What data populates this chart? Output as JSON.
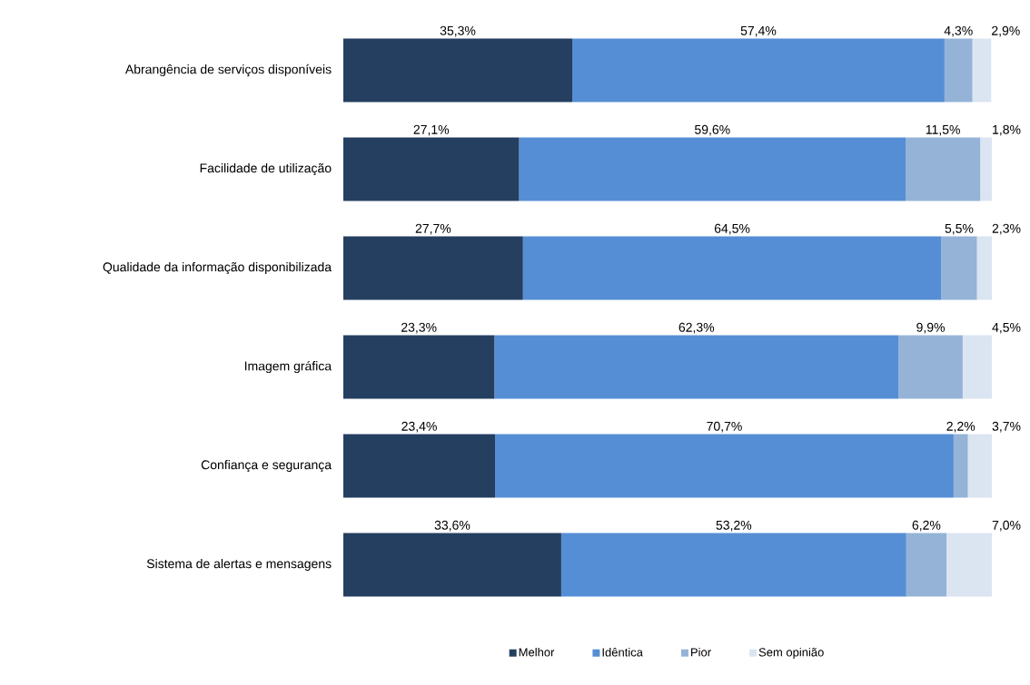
{
  "chart_data": {
    "type": "bar",
    "orientation": "horizontal",
    "stacked": true,
    "tick_labels": "y",
    "legend": "bottom",
    "categories": [
      "Abrangência de serviços disponíveis",
      "Facilidade de utilização",
      "Qualidade da informação disponibilizada",
      "Imagem gráfica",
      "Confiança e segurança",
      "Sistema de alertas e mensagens"
    ],
    "series": [
      {
        "name": "Melhor",
        "color": "#243f60",
        "values": [
          35.3,
          27.1,
          27.7,
          23.3,
          23.4,
          33.6
        ],
        "value_labels": [
          "35,3%",
          "27,1%",
          "27,7%",
          "23,3%",
          "23,4%",
          "33,6%"
        ]
      },
      {
        "name": "Idêntica",
        "color": "#558ed5",
        "values": [
          57.4,
          59.6,
          64.5,
          62.3,
          70.7,
          53.2
        ],
        "value_labels": [
          "57,4%",
          "59,6%",
          "64,5%",
          "62,3%",
          "70,7%",
          "53,2%"
        ]
      },
      {
        "name": "Pior",
        "color": "#95b3d7",
        "values": [
          4.3,
          11.5,
          5.5,
          9.9,
          2.2,
          6.2
        ],
        "value_labels": [
          "4,3%",
          "11,5%",
          "5,5%",
          "9,9%",
          "2,2%",
          "6,2%"
        ]
      },
      {
        "name": "Sem opinião",
        "color": "#dbe5f1",
        "values": [
          2.9,
          1.8,
          2.3,
          4.5,
          3.7,
          7.0
        ],
        "value_labels": [
          "2,9%",
          "1,8%",
          "2,3%",
          "4,5%",
          "3,7%",
          "7,0%"
        ]
      }
    ]
  }
}
